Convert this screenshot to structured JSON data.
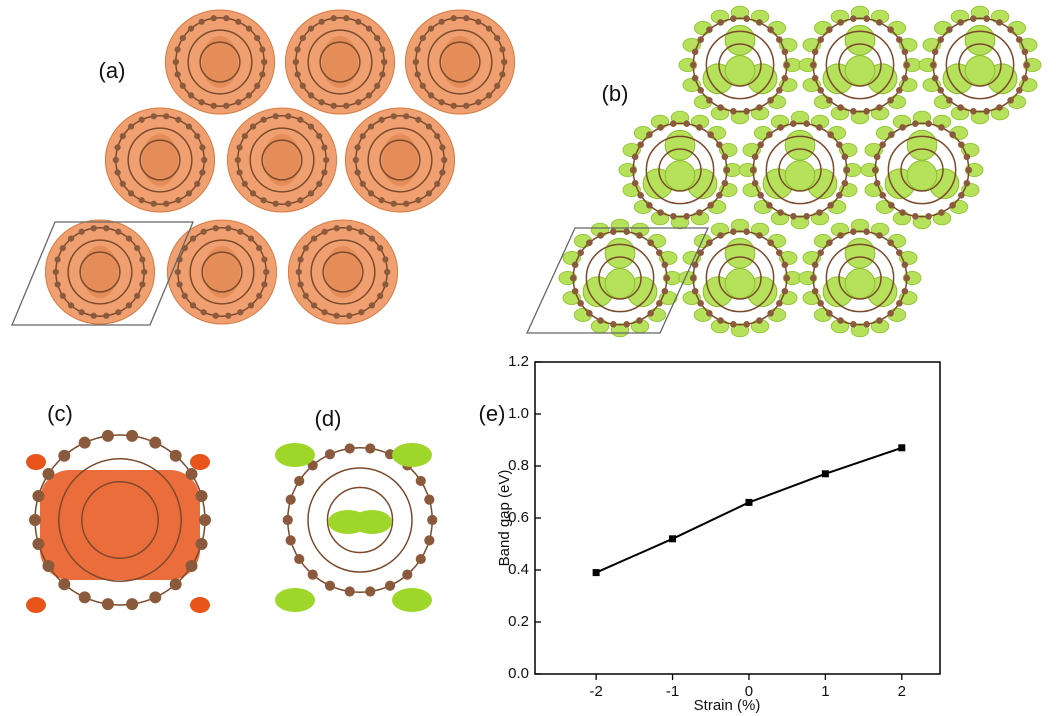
{
  "panels": [
    "(a)",
    "(b)",
    "(c)",
    "(d)",
    "(e)"
  ],
  "chart_data": {
    "type": "line",
    "x_label": "Strain (%)",
    "y_label": "Band gap (eV)",
    "x": [
      -2,
      -1,
      0,
      1,
      2
    ],
    "values": [
      0.39,
      0.52,
      0.66,
      0.77,
      0.87
    ],
    "color": "#000000",
    "xlim": [
      -2.8,
      2.5
    ],
    "xticks": [
      -2,
      -1,
      0,
      1,
      2
    ],
    "ylim": [
      0,
      1.2
    ],
    "yticks": [
      {
        "value": 0,
        "label": "0.0"
      },
      0.2,
      0.4,
      0.6,
      0.8,
      {
        "value": 1,
        "label": "1.0"
      },
      1.2
    ]
  }
}
